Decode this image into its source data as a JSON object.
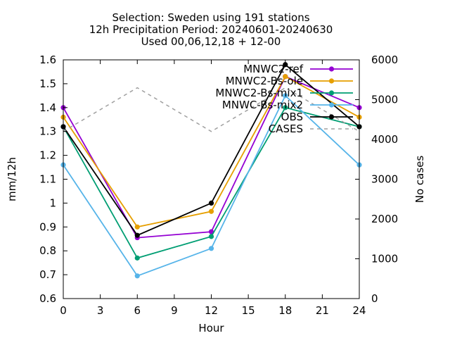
{
  "chart_data": {
    "type": "line",
    "title_lines": [
      "Selection: Sweden using   191 stations",
      "12h Precipitation   Period: 20240601-20240630",
      "Used 00,06,12,18 + 12-00"
    ],
    "xlabel": "Hour",
    "ylabel": "mm/12h",
    "y2label": "No cases",
    "xlim": [
      0,
      24
    ],
    "ylim": [
      0.6,
      1.6
    ],
    "y2lim": [
      0,
      6000
    ],
    "xticks": [
      "0",
      "3",
      "6",
      "9",
      "12",
      "15",
      "18",
      "21",
      "24"
    ],
    "yticks": [
      "0.6",
      "0.7",
      "0.8",
      "0.9",
      "1",
      "1.1",
      "1.2",
      "1.3",
      "1.4",
      "1.5",
      "1.6"
    ],
    "y2ticks": [
      "0",
      "1000",
      "2000",
      "3000",
      "4000",
      "5000",
      "6000"
    ],
    "grid": false,
    "legend_position": "top-right",
    "x": [
      0,
      6,
      12,
      18,
      24
    ],
    "series": [
      {
        "name": "MNWC2-ref",
        "color": "#9400d3",
        "axis": "y1",
        "values": [
          1.4,
          0.855,
          0.88,
          1.53,
          1.4
        ]
      },
      {
        "name": "MNWC2-Bs-ole",
        "color": "#e69f00",
        "axis": "y1",
        "values": [
          1.36,
          0.9,
          0.965,
          1.53,
          1.36
        ]
      },
      {
        "name": "MNWC2-Bs-mix1",
        "color": "#009e73",
        "axis": "y1",
        "values": [
          1.32,
          0.77,
          0.86,
          1.4,
          1.32
        ]
      },
      {
        "name": "MNWC-Bs-mix2",
        "color": "#56b4e9",
        "axis": "y1",
        "values": [
          1.16,
          0.695,
          0.81,
          1.45,
          1.16
        ]
      },
      {
        "name": "OBS",
        "color": "#000000",
        "axis": "y1",
        "values": [
          1.32,
          0.865,
          1.0,
          1.58,
          1.32
        ]
      },
      {
        "name": "CASES",
        "color": "#a0a0a0",
        "axis": "y2",
        "dashed": true,
        "values": [
          4200,
          5300,
          4200,
          5300,
          4200
        ]
      }
    ]
  }
}
